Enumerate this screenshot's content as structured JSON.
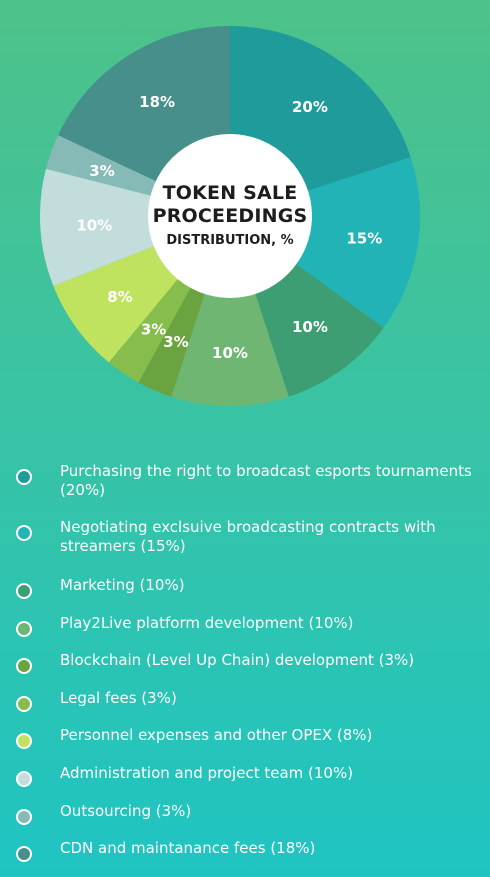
{
  "chart_data": {
    "type": "pie",
    "title_line1": "TOKEN SALE",
    "title_line2": "PROCEEDINGS",
    "subtitle": "DISTRIBUTION, %",
    "slices": [
      {
        "label": "Purchasing the right to broadcast esports tournaments (20%)",
        "value": 20,
        "value_label": "20%",
        "color": "#1f9b9c"
      },
      {
        "label": "Negotiating exclsuive broadcasting contracts with streamers (15%)",
        "value": 15,
        "value_label": "15%",
        "color": "#22b3b6"
      },
      {
        "label": "Marketing (10%)",
        "value": 10,
        "value_label": "10%",
        "color": "#3d9e73"
      },
      {
        "label": "Play2Live platform development (10%)",
        "value": 10,
        "value_label": "10%",
        "color": "#70b673"
      },
      {
        "label": "Blockchain (Level Up Chain) development (3%)",
        "value": 3,
        "value_label": "3%",
        "color": "#6aa33f"
      },
      {
        "label": "Legal fees (3%)",
        "value": 3,
        "value_label": "3%",
        "color": "#86bd4d"
      },
      {
        "label": "Personnel expenses and other OPEX (8%)",
        "value": 8,
        "value_label": "8%",
        "color": "#bfe35e"
      },
      {
        "label": "Administration and project team (10%)",
        "value": 10,
        "value_label": "10%",
        "color": "#c3dddd"
      },
      {
        "label": "Outsourcing (3%)",
        "value": 3,
        "value_label": "3%",
        "color": "#86bab7"
      },
      {
        "label": "CDN and maintanance fees (18%)",
        "value": 18,
        "value_label": "18%",
        "color": "#468f8b"
      }
    ]
  }
}
